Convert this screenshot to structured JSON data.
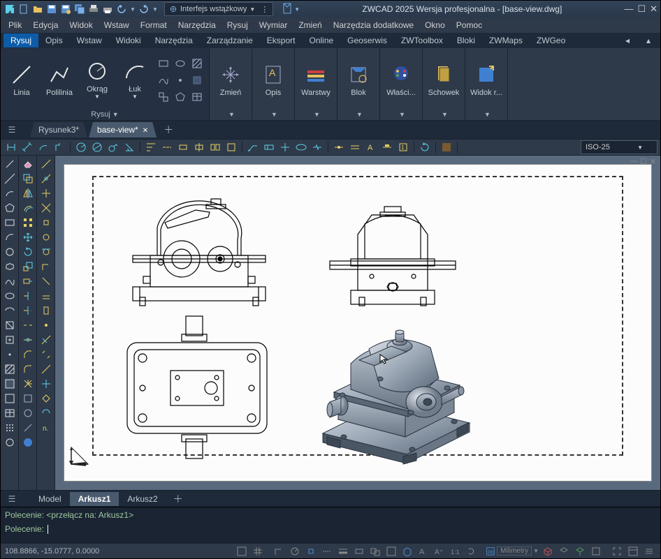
{
  "titlebar": {
    "interface_label": "Interfejs wstążkowy",
    "app_title": "ZWCAD 2025 Wersja profesjonalna - [base-view.dwg]"
  },
  "menubar": [
    "Plik",
    "Edycja",
    "Widok",
    "Wstaw",
    "Format",
    "Narzędzia",
    "Rysuj",
    "Wymiar",
    "Zmień",
    "Narzędzia dodatkowe",
    "Okno",
    "Pomoc"
  ],
  "ribbon_tabs": [
    "Rysuj",
    "Opis",
    "Wstaw",
    "Widoki",
    "Narzędzia",
    "Zarządzanie",
    "Eksport",
    "Online",
    "Geoserwis",
    "ZWToolbox",
    "Bloki",
    "ZWMaps",
    "ZWGeo"
  ],
  "ribbon_active_tab": 0,
  "ribbon": {
    "draw_panel": {
      "label": "Rysuj",
      "btns": [
        {
          "label": "Linia"
        },
        {
          "label": "Polilinia"
        },
        {
          "label": "Okrąg"
        },
        {
          "label": "Łuk"
        }
      ]
    },
    "other_panels": [
      {
        "label": "Zmień"
      },
      {
        "label": "Opis"
      },
      {
        "label": "Warstwy"
      },
      {
        "label": "Blok"
      },
      {
        "label": "Właści..."
      },
      {
        "label": "Schowek"
      },
      {
        "label": "Widok r..."
      }
    ]
  },
  "doc_tabs": [
    {
      "label": "Rysunek3*",
      "active": false
    },
    {
      "label": "base-view*",
      "active": true
    }
  ],
  "dim_style": "ISO-25",
  "layout_tabs": [
    {
      "label": "Model",
      "active": false
    },
    {
      "label": "Arkusz1",
      "active": true
    },
    {
      "label": "Arkusz2",
      "active": false
    }
  ],
  "cmdline": {
    "line1": "Polecenie: <przełącz na: Arkusz1>",
    "line2": "Polecenie: "
  },
  "statusbar": {
    "coords": "108.8866, -15.0777, 0.0000",
    "units": "Milimetry"
  },
  "colors": {
    "bg_dark": "#2e3a4a",
    "bg_darker": "#1e2a3a",
    "accent": "#0d5ca8",
    "canvas_bg": "#5a6a7e",
    "paper": "#fcfcfc"
  }
}
